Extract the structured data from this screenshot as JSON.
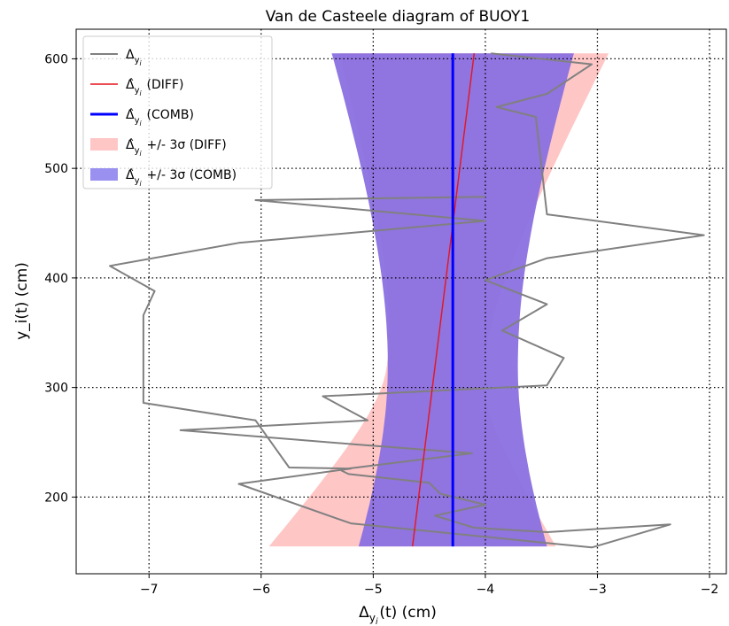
{
  "chart_data": {
    "type": "line",
    "title": "Van de Casteele diagram of BUOY1",
    "xlabel": "Δ_{y_i}(t) (cm)",
    "ylabel": "y_i(t) (cm)",
    "xlim": [
      -7.65,
      -1.85
    ],
    "ylim": [
      130,
      627
    ],
    "xticks": [
      -7,
      -6,
      -5,
      -4,
      -3,
      -2
    ],
    "xtick_labels": [
      "−7",
      "−6",
      "−5",
      "−4",
      "−3",
      "−2"
    ],
    "yticks": [
      200,
      300,
      400,
      500,
      600
    ],
    "ytick_labels": [
      "200",
      "300",
      "400",
      "500",
      "600"
    ],
    "grid": true,
    "grid_style": "dotted",
    "legend_position": "upper-left",
    "series": [
      {
        "name": "Δ_{y_i}",
        "kind": "line",
        "color": "#808080",
        "points": [
          [
            -3.95,
            605
          ],
          [
            -3.05,
            595
          ],
          [
            -3.45,
            568
          ],
          [
            -3.9,
            556
          ],
          [
            -3.55,
            547
          ],
          [
            -3.45,
            458
          ],
          [
            -2.05,
            439
          ],
          [
            -3.45,
            418
          ],
          [
            -4.0,
            398
          ],
          [
            -3.45,
            376
          ],
          [
            -3.85,
            352
          ],
          [
            -3.3,
            327
          ],
          [
            -3.45,
            302
          ],
          [
            -5.45,
            292
          ],
          [
            -5.05,
            270
          ],
          [
            -6.72,
            261
          ],
          [
            -5.15,
            248
          ],
          [
            -4.12,
            240
          ],
          [
            -5.3,
            225
          ],
          [
            -5.22,
            221
          ],
          [
            -4.5,
            213
          ],
          [
            -4.4,
            203
          ],
          [
            -4.0,
            193
          ],
          [
            -4.45,
            183
          ],
          [
            -4.1,
            172
          ],
          [
            -3.45,
            168
          ],
          [
            -2.35,
            175
          ],
          [
            -3.05,
            154
          ],
          [
            -5.2,
            176
          ],
          [
            -6.2,
            212
          ],
          [
            -5.2,
            226
          ],
          [
            -5.75,
            227
          ],
          [
            -6.05,
            270
          ],
          [
            -7.05,
            286
          ],
          [
            -7.05,
            366
          ],
          [
            -6.95,
            388
          ],
          [
            -7.35,
            411
          ],
          [
            -6.2,
            432
          ],
          [
            -4.0,
            452
          ],
          [
            -6.05,
            471
          ],
          [
            -4.0,
            474
          ]
        ]
      },
      {
        "name": "Δ̂_{y_i} (DIFF)",
        "kind": "line",
        "color": "#e6141e",
        "points": [
          [
            -4.65,
            155
          ],
          [
            -4.1,
            605
          ]
        ]
      },
      {
        "name": "Δ̂_{y_i} (COMB)",
        "kind": "line",
        "color": "#0000ff",
        "points": [
          [
            -4.29,
            155
          ],
          [
            -4.29,
            605
          ]
        ]
      },
      {
        "name": "Δ̂_{y_i} +/- 3σ (DIFF)",
        "kind": "band",
        "color": "#ffc6c6",
        "y_center": 320,
        "center": [
          -4.65,
          -4.1
        ],
        "half_width_min": 0.43,
        "half_width_top": 1.2,
        "half_width_bottom": 1.28
      },
      {
        "name": "Δ̂_{y_i} +/- 3σ (COMB)",
        "kind": "band",
        "color": "#8a70e0",
        "y_center": 320,
        "center": [
          -4.29,
          -4.29
        ],
        "half_width_min": 0.58,
        "half_width_top": 1.08,
        "half_width_bottom": 0.84
      }
    ],
    "legend": [
      {
        "label": "Δ_{y_i}",
        "color": "#808080",
        "kind": "line"
      },
      {
        "label": "Δ̂_{y_i} (DIFF)",
        "color": "#e6141e",
        "kind": "line"
      },
      {
        "label": "Δ̂_{y_i} (COMB)",
        "color": "#0000ff",
        "kind": "thickline"
      },
      {
        "label": "Δ̂_{y_i} +/- 3σ (DIFF)",
        "color": "#ffc6c6",
        "kind": "patch"
      },
      {
        "label": "Δ̂_{y_i} +/- 3σ (COMB)",
        "color": "#9a90f0",
        "kind": "patch"
      }
    ]
  }
}
